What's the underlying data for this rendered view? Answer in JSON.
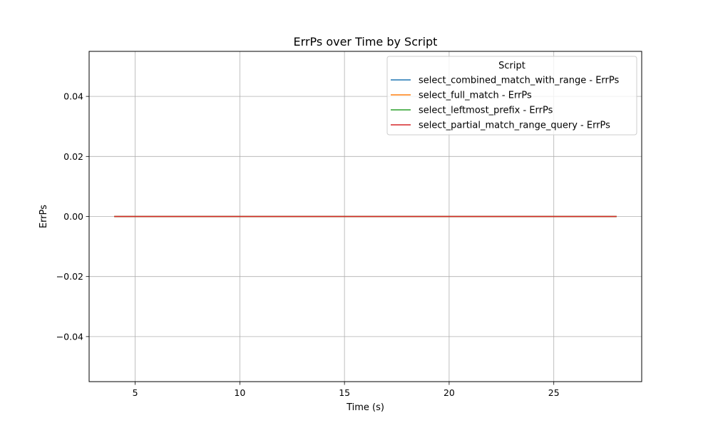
{
  "chart_data": {
    "type": "line",
    "title": "ErrPs over Time by Script",
    "xlabel": "Time (s)",
    "ylabel": "ErrPs",
    "xlim": [
      2.8,
      29.2
    ],
    "ylim": [
      -0.055,
      0.055
    ],
    "xticks": [
      5,
      10,
      15,
      20,
      25
    ],
    "xtick_labels": [
      "5",
      "10",
      "15",
      "20",
      "25"
    ],
    "yticks": [
      -0.04,
      -0.02,
      0.0,
      0.02,
      0.04
    ],
    "ytick_labels": [
      "−0.04",
      "−0.02",
      "0.00",
      "0.02",
      "0.04"
    ],
    "grid": true,
    "legend": {
      "title": "Script",
      "placement": "top-right"
    },
    "series": [
      {
        "name": "select_combined_match_with_range - ErrPs",
        "color": "#1f77b4",
        "x": [
          4,
          28
        ],
        "y": [
          0,
          0
        ]
      },
      {
        "name": "select_full_match - ErrPs",
        "color": "#ff7f0e",
        "x": [
          4,
          28
        ],
        "y": [
          0,
          0
        ]
      },
      {
        "name": "select_leftmost_prefix - ErrPs",
        "color": "#2ca02c",
        "x": [
          4,
          28
        ],
        "y": [
          0,
          0
        ]
      },
      {
        "name": "select_partial_match_range_query - ErrPs",
        "color": "#d62728",
        "x": [
          4,
          28
        ],
        "y": [
          0,
          0
        ]
      }
    ]
  }
}
